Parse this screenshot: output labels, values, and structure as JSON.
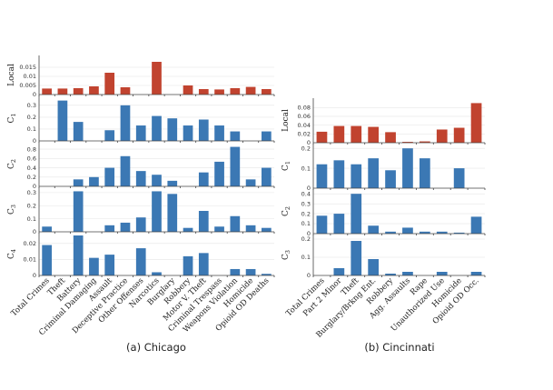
{
  "colors": {
    "local": "#c1432f",
    "cluster": "#3b78b4"
  },
  "chart_data": [
    {
      "type": "bar",
      "caption": "(a) Chicago",
      "categories": [
        "Total Crimes",
        "Theft",
        "Battery",
        "Criminal Damaging",
        "Assault",
        "Deceptive Practice",
        "Other Offenses",
        "Narcotics",
        "Burglary",
        "Robbery",
        "Motor V. Theft",
        "Criminal Trespass",
        "Weapons Violation",
        "Homicide",
        "Opioid OD Deaths"
      ],
      "series": [
        {
          "name": "Local",
          "color": "local",
          "ylim": [
            0,
            0.02
          ],
          "ticks": [
            "0.015",
            "0.01",
            "0.005",
            "0"
          ],
          "tick_values": [
            0.015,
            0.01,
            0.005,
            0
          ],
          "values": [
            0.0033,
            0.0033,
            0.0035,
            0.0045,
            0.012,
            0.004,
            0.0,
            0.018,
            0.0,
            0.005,
            0.003,
            0.0028,
            0.0035,
            0.0042,
            0.003
          ]
        },
        {
          "name": "C",
          "sub": "1",
          "color": "cluster",
          "ylim": [
            0,
            0.36
          ],
          "ticks": [
            "0.3",
            "0.2",
            "0.1",
            "0"
          ],
          "tick_values": [
            0.3,
            0.2,
            0.1,
            0
          ],
          "values": [
            0,
            0.34,
            0.16,
            0,
            0.09,
            0.3,
            0.13,
            0.21,
            0.19,
            0.13,
            0.18,
            0.13,
            0.08,
            0,
            0.08
          ]
        },
        {
          "name": "C",
          "sub": "2",
          "color": "cluster",
          "ylim": [
            0,
            0.9
          ],
          "ticks": [
            "0.8",
            "0.6",
            "0.4",
            "0.2",
            "0"
          ],
          "tick_values": [
            0.8,
            0.6,
            0.4,
            0.2,
            0
          ],
          "values": [
            0,
            0,
            0.15,
            0.2,
            0.4,
            0.65,
            0.33,
            0.25,
            0.12,
            0,
            0.3,
            0.53,
            0.85,
            0.15,
            0.4
          ]
        },
        {
          "name": "C",
          "sub": "3",
          "color": "cluster",
          "ylim": [
            0,
            0.32
          ],
          "ticks": [
            "0.3",
            "0.2",
            "0.1",
            "0"
          ],
          "tick_values": [
            0.3,
            0.2,
            0.1,
            0
          ],
          "values": [
            0.04,
            0,
            0.31,
            0,
            0.05,
            0.07,
            0.11,
            0.31,
            0.29,
            0.03,
            0.16,
            0.04,
            0.12,
            0.05,
            0.03
          ]
        },
        {
          "name": "C",
          "sub": "4",
          "color": "cluster",
          "ylim": [
            0,
            0.025
          ],
          "ticks": [
            "0.02",
            "0.01",
            "0"
          ],
          "tick_values": [
            0.02,
            0.01,
            0
          ],
          "values": [
            0.019,
            0,
            0.025,
            0.011,
            0.013,
            0,
            0.017,
            0.002,
            0,
            0.012,
            0.014,
            0,
            0.004,
            0.004,
            0.001
          ]
        }
      ]
    },
    {
      "type": "bar",
      "caption": "(b) Cincinnati",
      "categories": [
        "Total Crimes",
        "Part 2 Minor",
        "Theft",
        "Burglary/Brkng Ent.",
        "Robbery",
        "Agg. Assaults",
        "Rape",
        "Unauthorized Use",
        "Homicide",
        "Opioid OD Occ."
      ],
      "series": [
        {
          "name": "Local",
          "color": "local",
          "ylim": [
            0,
            0.095
          ],
          "ticks": [
            "0.08",
            "0.06",
            "0.04",
            "0.02",
            "0"
          ],
          "tick_values": [
            0.08,
            0.06,
            0.04,
            0.02,
            0
          ],
          "values": [
            0.025,
            0.038,
            0.038,
            0.036,
            0.024,
            0.002,
            0.003,
            0.03,
            0.034,
            0.09
          ]
        },
        {
          "name": "C",
          "sub": "1",
          "color": "cluster",
          "ylim": [
            0,
            0.21
          ],
          "ticks": [
            "0.2",
            "0.1",
            "0"
          ],
          "tick_values": [
            0.2,
            0.1,
            0
          ],
          "values": [
            0.12,
            0.14,
            0.12,
            0.15,
            0.09,
            0.2,
            0.15,
            0,
            0.1,
            0
          ]
        },
        {
          "name": "C",
          "sub": "2",
          "color": "cluster",
          "ylim": [
            0,
            0.42
          ],
          "ticks": [
            "0.4",
            "0.3",
            "0.2",
            "0.1",
            "0"
          ],
          "tick_values": [
            0.4,
            0.3,
            0.2,
            0.1,
            0
          ],
          "values": [
            0.18,
            0.2,
            0.4,
            0.08,
            0.02,
            0.06,
            0.02,
            0.02,
            0.01,
            0.17
          ]
        },
        {
          "name": "C",
          "sub": "3",
          "color": "cluster",
          "ylim": [
            0,
            0.21
          ],
          "ticks": [
            "0.2",
            "0.1",
            "0"
          ],
          "tick_values": [
            0.2,
            0.1,
            0
          ],
          "values": [
            0,
            0.04,
            0.19,
            0.09,
            0.01,
            0.02,
            0,
            0.02,
            0,
            0.02
          ]
        }
      ]
    }
  ]
}
